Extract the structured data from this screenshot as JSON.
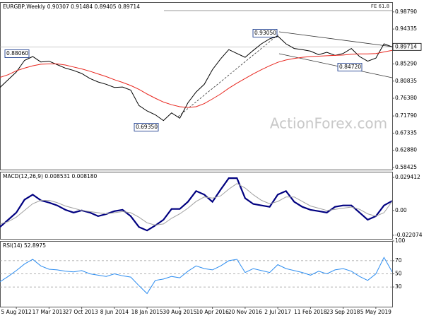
{
  "chart_data": [
    {
      "type": "line",
      "title": "EURGBP,Weekly  0.90307 0.91484 0.89405 0.89714",
      "watermark": "ActionForex.com",
      "annotations": [
        "0.88060",
        "0.69350",
        "0.93050",
        "0.84720"
      ],
      "fe_label": "FE 61.8",
      "price_label": "0.89714",
      "series": [
        {
          "name": "Price",
          "color": "#000000",
          "values": [
            0.792,
            0.812,
            0.832,
            0.862,
            0.872,
            0.858,
            0.86,
            0.851,
            0.842,
            0.836,
            0.828,
            0.815,
            0.806,
            0.8,
            0.792,
            0.793,
            0.785,
            0.745,
            0.731,
            0.721,
            0.706,
            0.726,
            0.712,
            0.752,
            0.78,
            0.8,
            0.838,
            0.866,
            0.89,
            0.88,
            0.87,
            0.888,
            0.905,
            0.918,
            0.925,
            0.905,
            0.893,
            0.89,
            0.886,
            0.877,
            0.883,
            0.875,
            0.88,
            0.893,
            0.872,
            0.86,
            0.868,
            0.905,
            0.89714
          ]
        },
        {
          "name": "MA",
          "color": "#e8261e",
          "values": [
            0.818,
            0.825,
            0.835,
            0.842,
            0.848,
            0.852,
            0.853,
            0.853,
            0.85,
            0.845,
            0.84,
            0.834,
            0.827,
            0.82,
            0.812,
            0.805,
            0.797,
            0.787,
            0.775,
            0.764,
            0.754,
            0.747,
            0.742,
            0.74,
            0.742,
            0.75,
            0.762,
            0.775,
            0.79,
            0.803,
            0.815,
            0.827,
            0.838,
            0.848,
            0.857,
            0.863,
            0.867,
            0.87,
            0.872,
            0.873,
            0.874,
            0.875,
            0.876,
            0.878,
            0.879,
            0.879,
            0.88,
            0.884,
            0.888
          ]
        }
      ],
      "ylim": [
        0.5788,
        1.0132
      ],
      "yticks": [
        {
          "value": 0.9879,
          "label": "0.98790"
        },
        {
          "value": 0.94335,
          "label": "0.94335"
        },
        {
          "value": 0.8529,
          "label": "0.85290"
        },
        {
          "value": 0.80835,
          "label": "0.80835"
        },
        {
          "value": 0.7638,
          "label": "0.76380"
        },
        {
          "value": 0.7179,
          "label": "0.71790"
        },
        {
          "value": 0.67335,
          "label": "0.67335"
        },
        {
          "value": 0.6288,
          "label": "0.62880"
        },
        {
          "value": 0.58425,
          "label": "0.58425"
        }
      ]
    },
    {
      "type": "line",
      "title": "MACD(12,26,9) 0.008531 0.008180",
      "series": [
        {
          "name": "MACD",
          "color": "#000080",
          "values": [
            -0.0147,
            -0.0083,
            -0.0019,
            0.0096,
            0.0141,
            0.009,
            0.007,
            0.0045,
            0.0006,
            -0.0019,
            0,
            -0.0019,
            -0.0051,
            -0.0032,
            -0.0006,
            0.0006,
            -0.0051,
            -0.0147,
            -0.0179,
            -0.0134,
            -0.0083,
            0.0013,
            0.0013,
            0.0077,
            0.0173,
            0.0141,
            0.0077,
            0.0185,
            0.0288,
            0.0288,
            0.0109,
            0.0058,
            0.0045,
            0.0032,
            0.0141,
            0.0173,
            0.0077,
            0.0032,
            0.0006,
            -0.0006,
            -0.0019,
            0.0032,
            0.0045,
            0.0045,
            -0.0019,
            -0.0083,
            -0.0051,
            0.0045,
            0.008531
          ]
        },
        {
          "name": "Signal",
          "color": "#a0a0a0",
          "values": [
            -0.012,
            -0.01,
            -0.006,
            0.0,
            0.006,
            0.009,
            0.009,
            0.007,
            0.004,
            0.002,
            0.0,
            -0.001,
            -0.002,
            -0.003,
            -0.002,
            -0.001,
            -0.002,
            -0.006,
            -0.011,
            -0.013,
            -0.012,
            -0.007,
            -0.003,
            0.002,
            0.008,
            0.012,
            0.011,
            0.013,
            0.019,
            0.024,
            0.02,
            0.014,
            0.009,
            0.006,
            0.008,
            0.012,
            0.012,
            0.008,
            0.004,
            0.002,
            0.0,
            0.001,
            0.002,
            0.003,
            0.001,
            -0.003,
            -0.005,
            -0.002,
            0.00818
          ]
        }
      ],
      "ylim": [
        -0.0253,
        0.0345
      ],
      "yticks": [
        0.029412,
        {
          "value": 0,
          "label": "0.00"
        },
        -0.022074
      ]
    },
    {
      "type": "line",
      "title": "RSI(14) 52.8975",
      "categories": [
        null,
        null,
        "5 Aug 2012",
        null,
        null,
        null,
        "17 Mar 2013",
        null,
        null,
        null,
        "27 Oct 2013",
        null,
        null,
        null,
        "8 Jun 2014",
        null,
        null,
        null,
        "18 Jan 2015",
        null,
        null,
        null,
        "30 Aug 2015",
        null,
        null,
        null,
        "10 Apr 2016",
        null,
        null,
        null,
        "20 Nov 2016",
        null,
        null,
        null,
        "2 Jul 2017",
        null,
        null,
        null,
        "11 Feb 2018",
        null,
        null,
        null,
        "23 Sep 2018",
        null,
        null,
        null,
        "5 May 2019",
        null,
        null
      ],
      "series": [
        {
          "name": "RSI",
          "color": "#2b8cf0",
          "values": [
            38,
            46,
            55,
            65,
            72,
            62,
            57,
            56,
            54,
            53,
            55,
            50,
            48,
            46,
            50,
            47,
            45,
            32,
            20,
            40,
            42,
            46,
            44,
            54,
            62,
            58,
            56,
            62,
            70,
            72,
            52,
            58,
            55,
            52,
            64,
            58,
            55,
            52,
            48,
            54,
            50,
            56,
            58,
            54,
            46,
            40,
            50,
            75,
            52.8975
          ]
        }
      ],
      "ylim": [
        0,
        100
      ],
      "yticks": [
        100,
        70,
        50,
        30
      ]
    }
  ]
}
